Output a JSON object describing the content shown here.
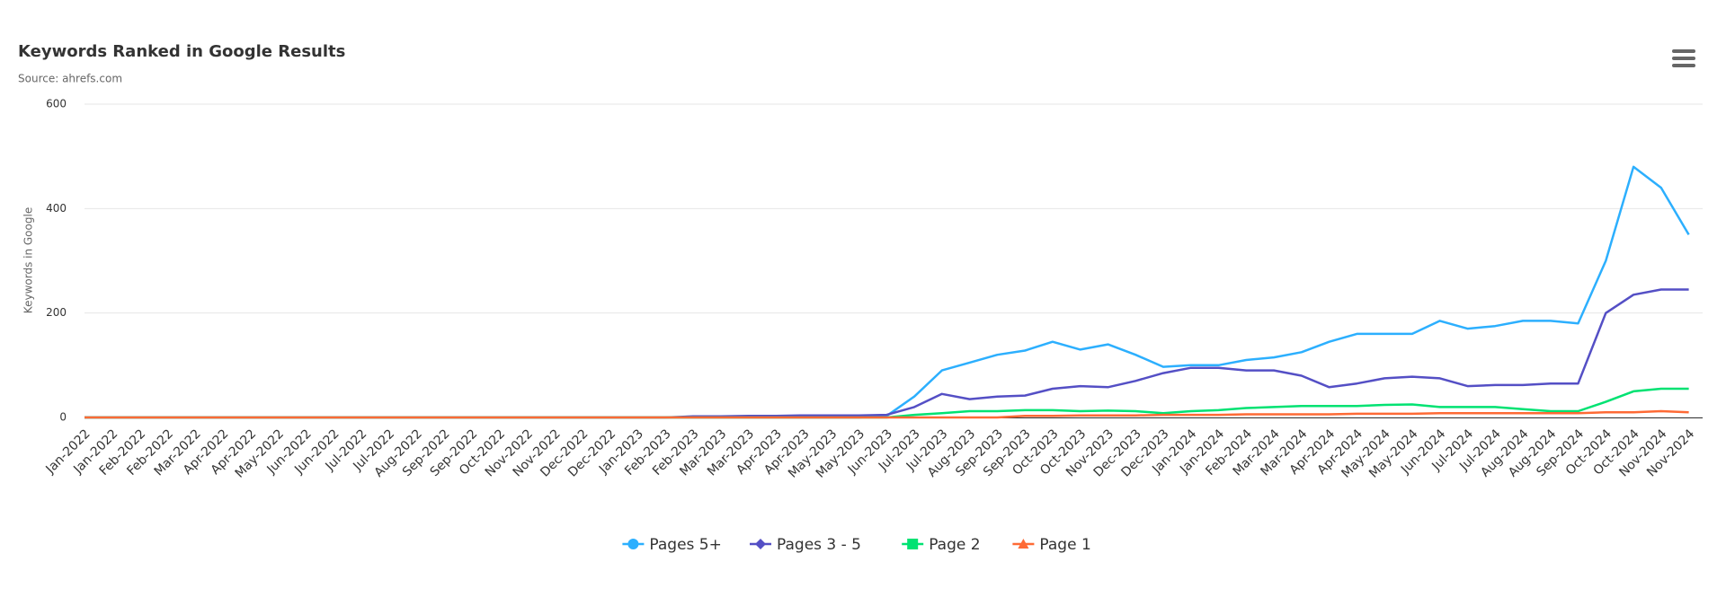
{
  "chart_data": {
    "type": "line",
    "title": "Keywords Ranked in Google Results",
    "subtitle": "Source: ahrefs.com",
    "y_label": "Keywords in Google",
    "categories": [
      "Jan-2022",
      "Jan-2022",
      "Feb-2022",
      "Feb-2022",
      "Mar-2022",
      "Apr-2022",
      "Apr-2022",
      "May-2022",
      "Jun-2022",
      "Jun-2022",
      "Jul-2022",
      "Jul-2022",
      "Aug-2022",
      "Sep-2022",
      "Sep-2022",
      "Oct-2022",
      "Nov-2022",
      "Nov-2022",
      "Dec-2022",
      "Dec-2022",
      "Jan-2023",
      "Feb-2023",
      "Feb-2023",
      "Mar-2023",
      "Mar-2023",
      "Apr-2023",
      "Apr-2023",
      "May-2023",
      "May-2023",
      "Jun-2023",
      "Jul-2023",
      "Jul-2023",
      "Aug-2023",
      "Sep-2023",
      "Sep-2023",
      "Oct-2023",
      "Oct-2023",
      "Nov-2023",
      "Dec-2023",
      "Dec-2023",
      "Jan-2024",
      "Jan-2024",
      "Feb-2024",
      "Mar-2024",
      "Mar-2024",
      "Apr-2024",
      "Apr-2024",
      "May-2024",
      "May-2024",
      "Jun-2024",
      "Jul-2024",
      "Jul-2024",
      "Aug-2024",
      "Aug-2024",
      "Sep-2024",
      "Oct-2024",
      "Oct-2024",
      "Nov-2024",
      "Nov-2024"
    ],
    "series": [
      {
        "name": "Pages 5+",
        "color": "#2caffe",
        "marker": "circle",
        "values": [
          0,
          0,
          0,
          0,
          0,
          0,
          0,
          0,
          0,
          0,
          0,
          0,
          0,
          0,
          0,
          0,
          0,
          0,
          0,
          0,
          0,
          0,
          0,
          0,
          0,
          0,
          0,
          0,
          0,
          3,
          40,
          90,
          105,
          120,
          128,
          145,
          130,
          140,
          120,
          97,
          100,
          100,
          110,
          115,
          125,
          145,
          160,
          160,
          160,
          185,
          170,
          175,
          185,
          185,
          180,
          300,
          480,
          440,
          350
        ]
      },
      {
        "name": "Pages 3 - 5",
        "color": "#544fc5",
        "marker": "diamond",
        "values": [
          0,
          0,
          0,
          0,
          0,
          0,
          0,
          0,
          0,
          0,
          0,
          0,
          0,
          0,
          0,
          0,
          0,
          0,
          0,
          0,
          0,
          0,
          2,
          2,
          3,
          3,
          4,
          4,
          4,
          5,
          20,
          45,
          35,
          40,
          42,
          55,
          60,
          58,
          70,
          85,
          95,
          95,
          90,
          90,
          80,
          58,
          65,
          75,
          78,
          75,
          60,
          62,
          62,
          65,
          65,
          200,
          235,
          245,
          245
        ]
      },
      {
        "name": "Page 2",
        "color": "#00e272",
        "marker": "square",
        "values": [
          0,
          0,
          0,
          0,
          0,
          0,
          0,
          0,
          0,
          0,
          0,
          0,
          0,
          0,
          0,
          0,
          0,
          0,
          0,
          0,
          0,
          0,
          0,
          0,
          0,
          0,
          0,
          0,
          0,
          0,
          5,
          8,
          12,
          12,
          14,
          14,
          12,
          13,
          12,
          8,
          12,
          14,
          18,
          20,
          22,
          22,
          22,
          24,
          25,
          20,
          20,
          20,
          16,
          12,
          12,
          30,
          50,
          55,
          55
        ]
      },
      {
        "name": "Page 1",
        "color": "#fe6a35",
        "marker": "triangle",
        "values": [
          0,
          0,
          0,
          0,
          0,
          0,
          0,
          0,
          0,
          0,
          0,
          0,
          0,
          0,
          0,
          0,
          0,
          0,
          0,
          0,
          0,
          0,
          0,
          0,
          0,
          0,
          0,
          0,
          0,
          0,
          0,
          0,
          0,
          0,
          3,
          3,
          4,
          4,
          4,
          5,
          5,
          5,
          6,
          6,
          6,
          6,
          7,
          7,
          7,
          8,
          8,
          8,
          8,
          8,
          8,
          10,
          10,
          12,
          10
        ]
      }
    ],
    "ylim": [
      0,
      600
    ],
    "yticks": [
      0,
      200,
      400,
      600
    ],
    "grid": true,
    "legend": "bottom"
  }
}
